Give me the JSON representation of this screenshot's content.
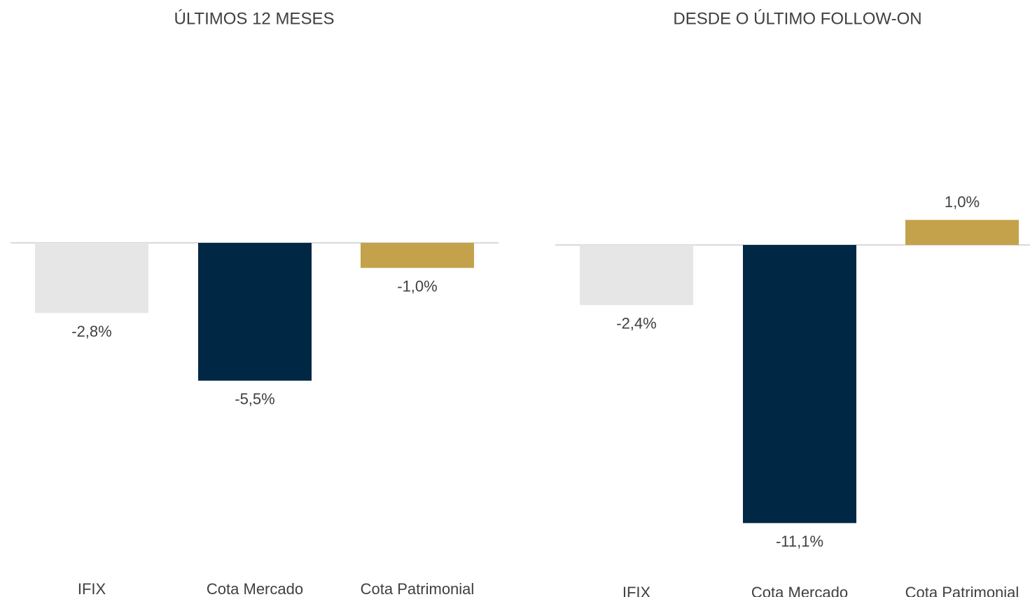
{
  "chart_data": [
    {
      "type": "bar",
      "title": "ÚLTIMOS 12 MESES",
      "categories": [
        "IFIX",
        "Cota Mercado",
        "Cota Patrimonial"
      ],
      "values": [
        -2.8,
        -5.5,
        -1.0
      ],
      "value_labels": [
        "-2,8%",
        "-5,5%",
        "-1,0%"
      ],
      "colors": [
        "#e6e6e6",
        "#002845",
        "#c4a24b"
      ]
    },
    {
      "type": "bar",
      "title": "DESDE O ÚLTIMO FOLLOW-ON",
      "categories": [
        "IFIX",
        "Cota Mercado",
        "Cota Patrimonial"
      ],
      "values": [
        -2.4,
        -11.1,
        1.0
      ],
      "value_labels": [
        "-2,4%",
        "-11,1%",
        "1,0%"
      ],
      "colors": [
        "#e6e6e6",
        "#002845",
        "#c4a24b"
      ]
    }
  ]
}
